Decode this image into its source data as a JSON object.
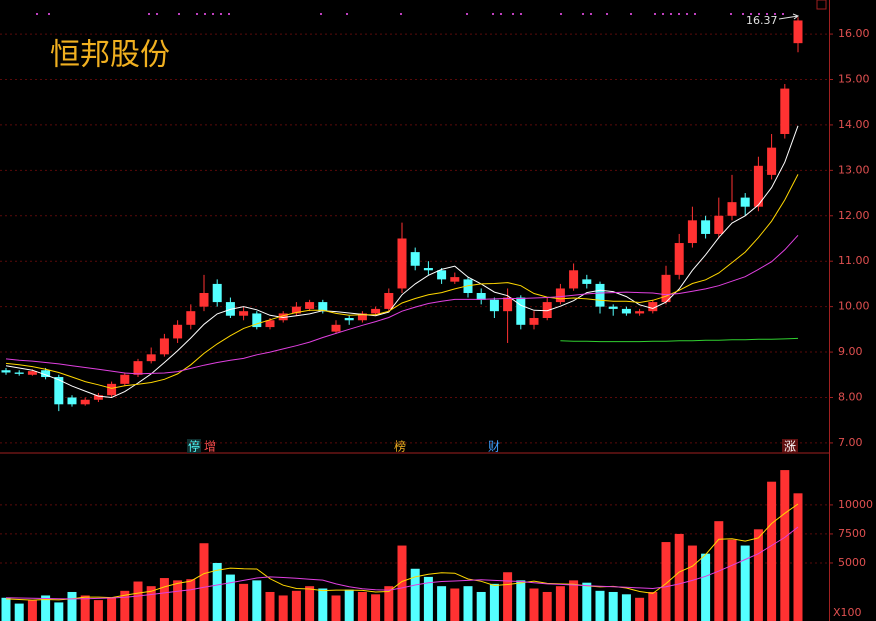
{
  "title": "恒邦股份",
  "chart_data": {
    "type": "candlestick",
    "up_color": "#ff3232",
    "down_color": "#54ffff",
    "open": [
      8.6,
      8.55,
      8.5,
      8.6,
      8.45,
      8.0,
      7.85,
      7.95,
      8.05,
      8.3,
      8.5,
      8.8,
      8.95,
      9.3,
      9.6,
      10.0,
      10.5,
      10.1,
      9.8,
      9.85,
      9.55,
      9.7,
      9.85,
      9.95,
      10.1,
      9.45,
      9.75,
      9.7,
      9.85,
      9.95,
      10.4,
      11.2,
      10.85,
      10.8,
      10.55,
      10.6,
      10.3,
      10.15,
      9.9,
      10.2,
      9.6,
      9.75,
      10.1,
      10.4,
      10.6,
      10.5,
      10.0,
      9.95,
      9.85,
      9.9,
      10.1,
      10.7,
      11.4,
      11.9,
      11.6,
      12.0,
      12.4,
      12.2,
      12.9,
      13.8,
      15.8
    ],
    "high": [
      8.65,
      8.6,
      8.62,
      8.65,
      8.5,
      8.05,
      8.0,
      8.1,
      8.35,
      8.55,
      8.85,
      9.1,
      9.4,
      9.7,
      10.05,
      10.7,
      10.6,
      10.2,
      10.0,
      9.9,
      9.75,
      9.9,
      10.1,
      10.15,
      10.15,
      9.7,
      9.8,
      9.9,
      10.0,
      10.4,
      11.85,
      11.3,
      11.0,
      10.85,
      10.75,
      10.65,
      10.4,
      10.2,
      10.4,
      10.25,
      9.9,
      10.2,
      10.5,
      10.95,
      10.7,
      10.55,
      10.05,
      10.0,
      9.95,
      10.15,
      10.9,
      11.6,
      12.2,
      12.0,
      12.4,
      12.9,
      12.5,
      13.3,
      13.8,
      14.9,
      16.37
    ],
    "low": [
      8.5,
      8.48,
      8.48,
      8.4,
      7.7,
      7.8,
      7.82,
      7.9,
      8.0,
      8.25,
      8.45,
      8.75,
      8.9,
      9.2,
      9.5,
      9.9,
      10.0,
      9.75,
      9.7,
      9.5,
      9.5,
      9.65,
      9.8,
      9.9,
      9.85,
      9.4,
      9.6,
      9.65,
      9.8,
      9.9,
      10.3,
      10.8,
      10.7,
      10.5,
      10.5,
      10.2,
      10.05,
      9.75,
      9.2,
      9.5,
      9.5,
      9.7,
      10.05,
      10.35,
      10.4,
      9.85,
      9.8,
      9.8,
      9.8,
      9.85,
      10.05,
      10.6,
      11.3,
      11.5,
      11.5,
      11.9,
      12.0,
      12.1,
      12.8,
      13.7,
      15.6
    ],
    "close": [
      8.55,
      8.52,
      8.58,
      8.45,
      7.85,
      7.85,
      7.95,
      8.05,
      8.3,
      8.5,
      8.8,
      8.95,
      9.3,
      9.6,
      9.9,
      10.3,
      10.1,
      9.8,
      9.9,
      9.55,
      9.7,
      9.85,
      10.0,
      10.1,
      9.9,
      9.6,
      9.7,
      9.85,
      9.95,
      10.3,
      11.5,
      10.9,
      10.8,
      10.6,
      10.65,
      10.3,
      10.15,
      9.9,
      10.2,
      9.6,
      9.75,
      10.1,
      10.4,
      10.8,
      10.5,
      10.0,
      9.95,
      9.85,
      9.9,
      10.1,
      10.7,
      11.4,
      11.9,
      11.6,
      12.0,
      12.3,
      12.2,
      13.1,
      13.5,
      14.8,
      16.3
    ],
    "lines": [
      {
        "color": "#ffffff",
        "values": [
          8.7,
          8.65,
          8.6,
          8.5,
          8.39,
          8.25,
          8.14,
          8.03,
          8.0,
          8.13,
          8.32,
          8.52,
          8.77,
          9.03,
          9.31,
          9.61,
          9.84,
          9.94,
          10.0,
          9.93,
          9.81,
          9.76,
          9.8,
          9.84,
          9.91,
          9.89,
          9.86,
          9.83,
          9.8,
          9.88,
          10.26,
          10.5,
          10.69,
          10.82,
          10.89,
          10.65,
          10.5,
          10.32,
          10.24,
          10.03,
          9.92,
          9.91,
          10.01,
          10.13,
          10.31,
          10.36,
          10.33,
          10.22,
          10.04,
          9.96,
          10.1,
          10.39,
          10.8,
          11.14,
          11.52,
          11.84,
          12.0,
          12.24,
          12.62,
          13.18,
          13.98
        ]
      },
      {
        "color": "#ffd700",
        "values": [
          8.75,
          8.72,
          8.68,
          8.62,
          8.55,
          8.45,
          8.35,
          8.28,
          8.2,
          8.26,
          8.29,
          8.33,
          8.4,
          8.52,
          8.72,
          8.97,
          9.18,
          9.36,
          9.52,
          9.62,
          9.71,
          9.8,
          9.87,
          9.92,
          9.92,
          9.85,
          9.81,
          9.82,
          9.82,
          9.9,
          10.08,
          10.18,
          10.26,
          10.31,
          10.39,
          10.46,
          10.5,
          10.51,
          10.53,
          10.46,
          10.29,
          10.21,
          10.17,
          10.19,
          10.17,
          10.14,
          10.12,
          10.12,
          10.09,
          10.14,
          10.23,
          10.36,
          10.51,
          10.59,
          10.74,
          10.97,
          11.2,
          11.52,
          11.88,
          12.35,
          12.91
        ]
      },
      {
        "color": "#e040e0",
        "values": [
          8.85,
          8.82,
          8.8,
          8.77,
          8.74,
          8.7,
          8.66,
          8.62,
          8.58,
          8.54,
          8.52,
          8.53,
          8.54,
          8.57,
          8.64,
          8.71,
          8.77,
          8.82,
          8.86,
          8.94,
          9.0,
          9.07,
          9.14,
          9.22,
          9.32,
          9.41,
          9.5,
          9.59,
          9.67,
          9.76,
          9.9,
          9.99,
          10.07,
          10.12,
          10.16,
          10.16,
          10.16,
          10.17,
          10.18,
          10.18,
          10.19,
          10.2,
          10.22,
          10.25,
          10.28,
          10.3,
          10.31,
          10.32,
          10.31,
          10.3,
          10.26,
          10.29,
          10.34,
          10.39,
          10.46,
          10.56,
          10.66,
          10.82,
          10.99,
          11.25,
          11.57
        ]
      },
      {
        "color": "#30d030",
        "values": [
          null,
          null,
          null,
          null,
          null,
          null,
          null,
          null,
          null,
          null,
          null,
          null,
          null,
          null,
          null,
          null,
          null,
          null,
          null,
          null,
          null,
          null,
          null,
          null,
          null,
          null,
          null,
          null,
          null,
          null,
          null,
          null,
          null,
          null,
          null,
          null,
          null,
          null,
          null,
          null,
          null,
          null,
          9.25,
          9.24,
          9.24,
          9.23,
          9.23,
          9.23,
          9.23,
          9.24,
          9.24,
          9.25,
          9.25,
          9.26,
          9.26,
          9.27,
          9.27,
          9.28,
          9.28,
          9.29,
          9.3
        ]
      }
    ],
    "ylim": [
      6.8,
      16.75
    ],
    "yticks": [
      {
        "value": 7,
        "label": "7.00"
      },
      {
        "value": 8,
        "label": "8.00"
      },
      {
        "value": 9,
        "label": "9.00"
      },
      {
        "value": 10,
        "label": "10.00"
      },
      {
        "value": 11,
        "label": "11.00"
      },
      {
        "value": 12,
        "label": "12.00"
      },
      {
        "value": 13,
        "label": "13.00"
      },
      {
        "value": 14,
        "label": "14.00"
      },
      {
        "value": 15,
        "label": "15.00"
      },
      {
        "value": 16,
        "label": "16.00"
      }
    ],
    "grid": true,
    "events": [
      "停",
      "增",
      "榜",
      "财",
      "涨"
    ],
    "volume": {
      "values": [
        2000,
        1500,
        1800,
        2200,
        1600,
        2500,
        2200,
        1800,
        2000,
        2600,
        3400,
        3000,
        3700,
        3500,
        3600,
        6700,
        5000,
        4000,
        3200,
        3500,
        2500,
        2200,
        2600,
        3000,
        2800,
        2200,
        2700,
        2500,
        2300,
        3000,
        6500,
        4500,
        3800,
        3000,
        2800,
        3000,
        2500,
        3200,
        4200,
        3500,
        2800,
        2500,
        3000,
        3500,
        3300,
        2600,
        2500,
        2300,
        2000,
        2500,
        6800,
        7500,
        6500,
        5800,
        8600,
        7000,
        6500,
        7900,
        12000,
        13000,
        11000
      ],
      "lines": [
        {
          "color": "#ffd700",
          "values": [
            1900,
            1850,
            1800,
            1850,
            1820,
            1920,
            2060,
            2060,
            2020,
            2220,
            2400,
            2560,
            2940,
            3240,
            3440,
            4080,
            4380,
            4560,
            4500,
            4480,
            3640,
            3080,
            2800,
            2760,
            2620,
            2660,
            2660,
            2640,
            2500,
            2540,
            3400,
            3800,
            4020,
            4160,
            4120,
            3620,
            3420,
            3060,
            3140,
            3280,
            3440,
            3240,
            3200,
            3160,
            3020,
            2940,
            2980,
            2840,
            2540,
            2380,
            3220,
            4220,
            4720,
            5720,
            7040,
            7080,
            6880,
            7160,
            8400,
            9280,
            10080
          ]
        },
        {
          "color": "#e040e0",
          "values": [
            2000,
            1980,
            1960,
            1940,
            1920,
            1900,
            1920,
            1950,
            1980,
            2040,
            2150,
            2280,
            2420,
            2560,
            2700,
            2900,
            3100,
            3300,
            3500,
            3700,
            3800,
            3750,
            3680,
            3600,
            3520,
            3200,
            2950,
            2780,
            2700,
            2650,
            2850,
            3100,
            3300,
            3400,
            3450,
            3500,
            3550,
            3500,
            3450,
            3400,
            3300,
            3200,
            3150,
            3100,
            3050,
            3000,
            2950,
            2900,
            2850,
            2800,
            2950,
            3200,
            3500,
            3850,
            4300,
            4800,
            5300,
            5800,
            6500,
            7200,
            8100
          ]
        }
      ],
      "ylim": [
        0,
        14300
      ],
      "yticks": [
        5000,
        7500,
        10000
      ],
      "unit": "X100"
    }
  }
}
